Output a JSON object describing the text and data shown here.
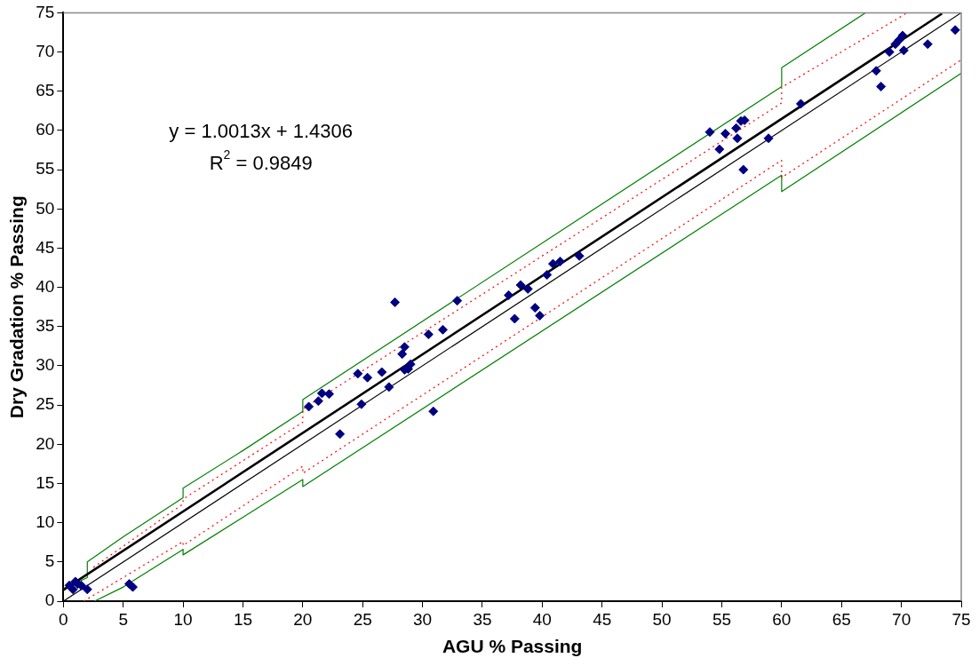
{
  "chart_data": {
    "type": "scatter",
    "xlabel": "AGU % Passing",
    "ylabel": "Dry Gradation % Passing",
    "xlim": [
      0,
      75
    ],
    "xticks": [
      0,
      5,
      10,
      15,
      20,
      25,
      30,
      35,
      40,
      45,
      50,
      55,
      60,
      65,
      70,
      75
    ],
    "ylim": [
      0,
      75
    ],
    "yticks": [
      0,
      5,
      10,
      15,
      20,
      25,
      30,
      35,
      40,
      45,
      50,
      55,
      60,
      65,
      70,
      75
    ],
    "grid": false,
    "legend": false,
    "marker": "diamond",
    "annotations": [
      "y = 1.0013x + 1.4306",
      "R$^{2}$ = 0.9849"
    ],
    "series": [
      {
        "color": "#000080",
        "x": [
          0.5,
          0.8,
          1,
          1.2,
          1.5,
          2,
          5.5,
          5.8,
          20.5,
          21.3,
          21.6,
          22.2,
          23.1,
          24.6,
          24.9,
          25.4,
          26.6,
          27.2,
          27.7,
          28.3,
          28.5,
          28.5,
          28.8,
          29,
          30.5,
          30.9,
          31.7,
          32.9,
          37.2,
          37.7,
          38.2,
          38.8,
          39.4,
          39.8,
          40.4,
          40.9,
          41.5,
          43.1,
          54,
          54.8,
          55.3,
          56.2,
          56.3,
          56.6,
          56.9,
          56.8,
          58.9,
          61.6,
          67.9,
          68.3,
          69,
          69.5,
          69.8,
          70.1,
          70.2,
          72.2,
          74.5
        ],
        "values": [
          2,
          1.5,
          2.5,
          2.2,
          2,
          1.5,
          2.2,
          1.8,
          24.8,
          25.5,
          26.5,
          26.4,
          21.3,
          29,
          25.1,
          28.5,
          29.2,
          27.3,
          38.1,
          31.5,
          32.4,
          29.5,
          29.6,
          30.2,
          34,
          24.2,
          34.6,
          38.3,
          39,
          36,
          40.3,
          39.8,
          37.4,
          36.4,
          41.6,
          43,
          43.3,
          44,
          59.8,
          57.6,
          59.6,
          60.3,
          59,
          61.2,
          61.3,
          55,
          59,
          63.4,
          67.6,
          65.6,
          70,
          71,
          71.5,
          72.1,
          70.2,
          71,
          72.8
        ]
      },
      {
        "type": "line",
        "color": "#000000",
        "marker": "none",
        "line_style": "solid",
        "x": [
          0,
          73.4
        ],
        "values": [
          1.43,
          74.9
        ]
      },
      {
        "type": "line",
        "color": "#000000",
        "marker": "none",
        "line_style": "solid",
        "x": [
          0,
          75
        ],
        "values": [
          0,
          75
        ]
      },
      {
        "type": "line",
        "color": "#ff0000",
        "marker": "none",
        "line_style": "dotted",
        "x": [
          2.5,
          10,
          10,
          20,
          20,
          60,
          60,
          70.5
        ],
        "values": [
          4.3,
          12.4,
          13,
          22.8,
          24.5,
          63.5,
          65.5,
          75
        ]
      },
      {
        "type": "line",
        "color": "#ff0000",
        "marker": "none",
        "line_style": "dotted",
        "x": [
          1.7,
          10,
          10,
          20,
          20,
          60,
          60,
          75
        ],
        "values": [
          0,
          7.6,
          7.1,
          17.2,
          16.3,
          56.2,
          54,
          69
        ]
      },
      {
        "type": "line",
        "color": "#008000",
        "marker": "none",
        "line_style": "solid",
        "x": [
          0,
          2,
          2,
          5,
          10,
          10,
          15,
          20,
          20,
          60,
          60,
          67
        ],
        "values": [
          1.6,
          3,
          5,
          8.2,
          13.2,
          14.4,
          19.2,
          24.2,
          25.7,
          65.6,
          68,
          75
        ]
      },
      {
        "type": "line",
        "color": "#008000",
        "marker": "none",
        "line_style": "solid",
        "x": [
          2.6,
          5,
          10,
          10,
          15,
          20,
          20,
          60,
          60,
          75
        ],
        "values": [
          0,
          1.8,
          6.6,
          5.9,
          10.7,
          15.5,
          14.6,
          54.3,
          52.2,
          67.3
        ]
      }
    ]
  }
}
